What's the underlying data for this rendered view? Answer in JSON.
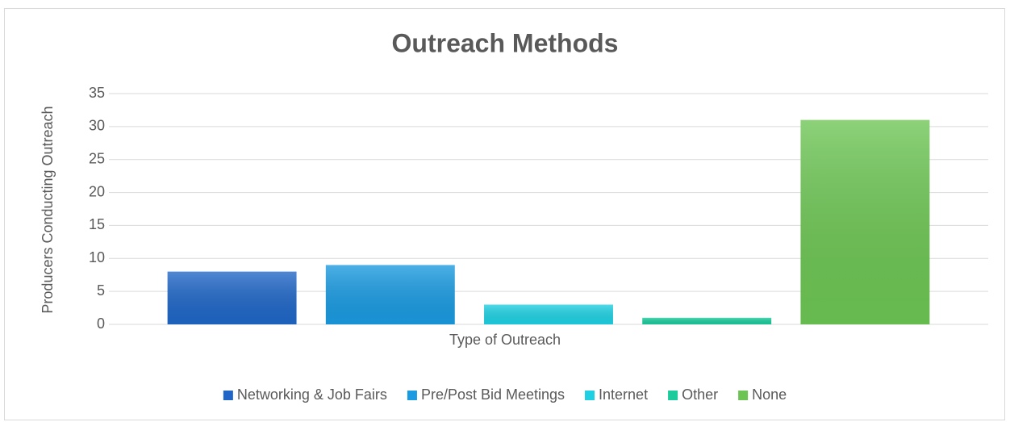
{
  "chart_data": {
    "type": "bar",
    "title": "Outreach Methods",
    "x_label": "Type of Outreach",
    "y_label": "Producers Conducting Outreach",
    "categories": [
      null
    ],
    "series": [
      {
        "name": "Networking & Job Fairs",
        "color": "#1f66c6",
        "values": [
          8
        ]
      },
      {
        "name": "Pre/Post Bid Meetings",
        "color": "#1a9ae0",
        "values": [
          9
        ]
      },
      {
        "name": "Internet",
        "color": "#1ed0e2",
        "values": [
          3
        ]
      },
      {
        "name": "Other",
        "color": "#1bcb9c",
        "values": [
          1
        ]
      },
      {
        "name": "None",
        "color": "#6cc553",
        "values": [
          31
        ]
      }
    ],
    "ylim": [
      0,
      35
    ],
    "yticks": [
      0,
      5,
      10,
      15,
      20,
      25,
      30,
      35
    ],
    "grid": true,
    "legend": "bottom"
  }
}
